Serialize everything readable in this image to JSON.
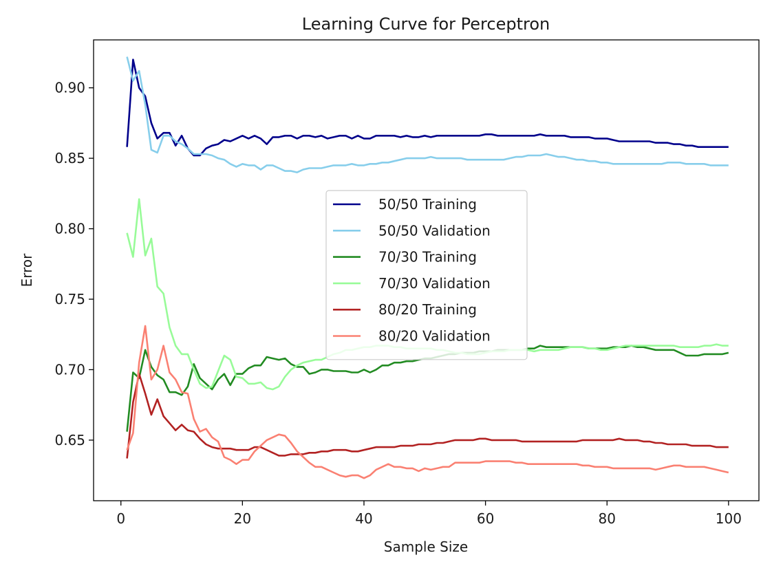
{
  "chart_data": {
    "type": "line",
    "title": "Learning Curve for Perceptron",
    "xlabel": "Sample Size",
    "ylabel": "Error",
    "xlim": [
      -4.5,
      105
    ],
    "ylim": [
      0.607,
      0.934
    ],
    "xticks": [
      0,
      20,
      40,
      60,
      80,
      100
    ],
    "yticks": [
      0.65,
      0.7,
      0.75,
      0.8,
      0.85,
      0.9
    ],
    "ytick_labels": [
      "0.65",
      "0.70",
      "0.75",
      "0.80",
      "0.85",
      "0.90"
    ],
    "grid": false,
    "legend": "center",
    "x": [
      1,
      2,
      3,
      4,
      5,
      6,
      7,
      8,
      9,
      10,
      11,
      12,
      13,
      14,
      15,
      16,
      17,
      18,
      19,
      20,
      21,
      22,
      23,
      24,
      25,
      26,
      27,
      28,
      29,
      30,
      31,
      32,
      33,
      34,
      35,
      36,
      37,
      38,
      39,
      40,
      41,
      42,
      43,
      44,
      45,
      46,
      47,
      48,
      49,
      50,
      51,
      52,
      53,
      54,
      55,
      56,
      57,
      58,
      59,
      60,
      61,
      62,
      63,
      64,
      65,
      66,
      67,
      68,
      69,
      70,
      71,
      72,
      73,
      74,
      75,
      76,
      77,
      78,
      79,
      80,
      81,
      82,
      83,
      84,
      85,
      86,
      87,
      88,
      89,
      90,
      91,
      92,
      93,
      94,
      95,
      96,
      97,
      98,
      99,
      100
    ],
    "series": [
      {
        "name": "50/50 Training",
        "color": "#00008b",
        "values": [
          0.858,
          0.92,
          0.9,
          0.894,
          0.875,
          0.864,
          0.868,
          0.868,
          0.859,
          0.866,
          0.857,
          0.852,
          0.852,
          0.857,
          0.859,
          0.86,
          0.863,
          0.862,
          0.864,
          0.866,
          0.864,
          0.866,
          0.864,
          0.86,
          0.865,
          0.865,
          0.866,
          0.866,
          0.864,
          0.866,
          0.866,
          0.865,
          0.866,
          0.864,
          0.865,
          0.866,
          0.866,
          0.864,
          0.866,
          0.864,
          0.864,
          0.866,
          0.866,
          0.866,
          0.866,
          0.865,
          0.866,
          0.865,
          0.865,
          0.866,
          0.865,
          0.866,
          0.866,
          0.866,
          0.866,
          0.866,
          0.866,
          0.866,
          0.866,
          0.867,
          0.867,
          0.866,
          0.866,
          0.866,
          0.866,
          0.866,
          0.866,
          0.866,
          0.867,
          0.866,
          0.866,
          0.866,
          0.866,
          0.865,
          0.865,
          0.865,
          0.865,
          0.864,
          0.864,
          0.864,
          0.863,
          0.862,
          0.862,
          0.862,
          0.862,
          0.862,
          0.862,
          0.861,
          0.861,
          0.861,
          0.86,
          0.86,
          0.859,
          0.859,
          0.858,
          0.858,
          0.858,
          0.858,
          0.858,
          0.858
        ]
      },
      {
        "name": "50/50 Validation",
        "color": "#87ceeb",
        "values": [
          0.922,
          0.905,
          0.912,
          0.888,
          0.856,
          0.854,
          0.866,
          0.866,
          0.862,
          0.86,
          0.857,
          0.853,
          0.853,
          0.853,
          0.852,
          0.85,
          0.849,
          0.846,
          0.844,
          0.846,
          0.845,
          0.845,
          0.842,
          0.845,
          0.845,
          0.843,
          0.841,
          0.841,
          0.84,
          0.842,
          0.843,
          0.843,
          0.843,
          0.844,
          0.845,
          0.845,
          0.845,
          0.846,
          0.845,
          0.845,
          0.846,
          0.846,
          0.847,
          0.847,
          0.848,
          0.849,
          0.85,
          0.85,
          0.85,
          0.85,
          0.851,
          0.85,
          0.85,
          0.85,
          0.85,
          0.85,
          0.849,
          0.849,
          0.849,
          0.849,
          0.849,
          0.849,
          0.849,
          0.85,
          0.851,
          0.851,
          0.852,
          0.852,
          0.852,
          0.853,
          0.852,
          0.851,
          0.851,
          0.85,
          0.849,
          0.849,
          0.848,
          0.848,
          0.847,
          0.847,
          0.846,
          0.846,
          0.846,
          0.846,
          0.846,
          0.846,
          0.846,
          0.846,
          0.846,
          0.847,
          0.847,
          0.847,
          0.846,
          0.846,
          0.846,
          0.846,
          0.845,
          0.845,
          0.845,
          0.845
        ]
      },
      {
        "name": "70/30 Training",
        "color": "#228b22",
        "values": [
          0.656,
          0.698,
          0.694,
          0.714,
          0.702,
          0.696,
          0.693,
          0.684,
          0.684,
          0.682,
          0.688,
          0.704,
          0.694,
          0.69,
          0.686,
          0.693,
          0.697,
          0.689,
          0.697,
          0.697,
          0.701,
          0.703,
          0.703,
          0.709,
          0.708,
          0.707,
          0.708,
          0.704,
          0.702,
          0.702,
          0.697,
          0.698,
          0.7,
          0.7,
          0.699,
          0.699,
          0.699,
          0.698,
          0.698,
          0.7,
          0.698,
          0.7,
          0.703,
          0.703,
          0.705,
          0.705,
          0.706,
          0.706,
          0.707,
          0.708,
          0.708,
          0.709,
          0.71,
          0.711,
          0.711,
          0.712,
          0.712,
          0.712,
          0.713,
          0.713,
          0.713,
          0.714,
          0.714,
          0.714,
          0.714,
          0.714,
          0.715,
          0.715,
          0.717,
          0.716,
          0.716,
          0.716,
          0.716,
          0.716,
          0.716,
          0.716,
          0.715,
          0.715,
          0.715,
          0.715,
          0.716,
          0.716,
          0.716,
          0.717,
          0.716,
          0.716,
          0.715,
          0.714,
          0.714,
          0.714,
          0.714,
          0.712,
          0.71,
          0.71,
          0.71,
          0.711,
          0.711,
          0.711,
          0.711,
          0.712
        ]
      },
      {
        "name": "70/30 Validation",
        "color": "#98fb98",
        "values": [
          0.797,
          0.78,
          0.821,
          0.781,
          0.793,
          0.759,
          0.754,
          0.73,
          0.717,
          0.711,
          0.711,
          0.7,
          0.69,
          0.687,
          0.688,
          0.699,
          0.71,
          0.707,
          0.695,
          0.694,
          0.69,
          0.69,
          0.691,
          0.687,
          0.686,
          0.688,
          0.695,
          0.7,
          0.703,
          0.705,
          0.706,
          0.707,
          0.707,
          0.709,
          0.711,
          0.712,
          0.714,
          0.714,
          0.715,
          0.716,
          0.716,
          0.717,
          0.717,
          0.717,
          0.716,
          0.716,
          0.715,
          0.715,
          0.715,
          0.715,
          0.715,
          0.714,
          0.714,
          0.713,
          0.712,
          0.712,
          0.711,
          0.711,
          0.711,
          0.712,
          0.713,
          0.713,
          0.713,
          0.714,
          0.714,
          0.714,
          0.714,
          0.713,
          0.714,
          0.714,
          0.714,
          0.714,
          0.715,
          0.716,
          0.716,
          0.716,
          0.715,
          0.715,
          0.714,
          0.714,
          0.715,
          0.716,
          0.717,
          0.717,
          0.717,
          0.717,
          0.717,
          0.717,
          0.717,
          0.717,
          0.717,
          0.716,
          0.716,
          0.716,
          0.716,
          0.717,
          0.717,
          0.718,
          0.717,
          0.717
        ]
      },
      {
        "name": "80/20 Training",
        "color": "#b22222",
        "values": [
          0.637,
          0.677,
          0.697,
          0.683,
          0.668,
          0.679,
          0.667,
          0.662,
          0.657,
          0.661,
          0.657,
          0.656,
          0.651,
          0.647,
          0.645,
          0.644,
          0.644,
          0.644,
          0.643,
          0.643,
          0.643,
          0.645,
          0.645,
          0.643,
          0.641,
          0.639,
          0.639,
          0.64,
          0.64,
          0.64,
          0.641,
          0.641,
          0.642,
          0.642,
          0.643,
          0.643,
          0.643,
          0.642,
          0.642,
          0.643,
          0.644,
          0.645,
          0.645,
          0.645,
          0.645,
          0.646,
          0.646,
          0.646,
          0.647,
          0.647,
          0.647,
          0.648,
          0.648,
          0.649,
          0.65,
          0.65,
          0.65,
          0.65,
          0.651,
          0.651,
          0.65,
          0.65,
          0.65,
          0.65,
          0.65,
          0.649,
          0.649,
          0.649,
          0.649,
          0.649,
          0.649,
          0.649,
          0.649,
          0.649,
          0.649,
          0.65,
          0.65,
          0.65,
          0.65,
          0.65,
          0.65,
          0.651,
          0.65,
          0.65,
          0.65,
          0.649,
          0.649,
          0.648,
          0.648,
          0.647,
          0.647,
          0.647,
          0.647,
          0.646,
          0.646,
          0.646,
          0.646,
          0.645,
          0.645,
          0.645
        ]
      },
      {
        "name": "80/20 Validation",
        "color": "#fa8072",
        "values": [
          0.643,
          0.655,
          0.705,
          0.731,
          0.693,
          0.7,
          0.717,
          0.698,
          0.693,
          0.684,
          0.683,
          0.665,
          0.656,
          0.658,
          0.652,
          0.649,
          0.638,
          0.636,
          0.633,
          0.636,
          0.636,
          0.642,
          0.646,
          0.65,
          0.652,
          0.654,
          0.653,
          0.648,
          0.642,
          0.638,
          0.634,
          0.631,
          0.631,
          0.629,
          0.627,
          0.625,
          0.624,
          0.625,
          0.625,
          0.623,
          0.625,
          0.629,
          0.631,
          0.633,
          0.631,
          0.631,
          0.63,
          0.63,
          0.628,
          0.63,
          0.629,
          0.63,
          0.631,
          0.631,
          0.634,
          0.634,
          0.634,
          0.634,
          0.634,
          0.635,
          0.635,
          0.635,
          0.635,
          0.635,
          0.634,
          0.634,
          0.633,
          0.633,
          0.633,
          0.633,
          0.633,
          0.633,
          0.633,
          0.633,
          0.633,
          0.632,
          0.632,
          0.631,
          0.631,
          0.631,
          0.63,
          0.63,
          0.63,
          0.63,
          0.63,
          0.63,
          0.63,
          0.629,
          0.63,
          0.631,
          0.632,
          0.632,
          0.631,
          0.631,
          0.631,
          0.631,
          0.63,
          0.629,
          0.628,
          0.627
        ]
      }
    ]
  }
}
